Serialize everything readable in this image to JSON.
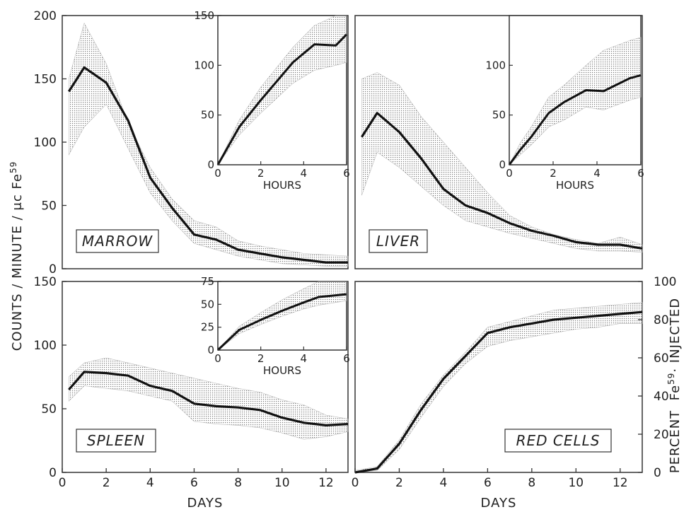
{
  "figure": {
    "y_label_left": "COUNTS / MINUTE / μc Fe",
    "y_label_left_sup": "59",
    "y_label_right_pre": "PERCENT  Fe",
    "y_label_right_sup": "59",
    "y_label_right_post": "· INJECTED"
  },
  "chart_data": [
    {
      "id": "marrow",
      "type": "line",
      "title": "MARROW",
      "xlabel": "",
      "ylabel": "",
      "xlim": [
        0,
        13
      ],
      "ylim": [
        0,
        200
      ],
      "xticks": [],
      "yticks": [
        0,
        50,
        100,
        150,
        200
      ],
      "x": [
        0.3,
        1,
        2,
        3,
        4,
        5,
        6,
        7,
        8,
        9,
        10,
        11,
        12,
        13
      ],
      "series": [
        {
          "values": [
            140,
            159,
            147,
            117,
            72,
            48,
            27,
            23,
            15,
            12,
            9,
            7,
            5,
            5
          ]
        }
      ],
      "band": {
        "upper": [
          150,
          194,
          162,
          115,
          80,
          55,
          38,
          33,
          22,
          18,
          15,
          12,
          11,
          10
        ],
        "lower": [
          90,
          112,
          130,
          95,
          60,
          38,
          20,
          15,
          10,
          7,
          4,
          3,
          2,
          2
        ]
      },
      "inset": {
        "xlabel": "HOURS",
        "xlim": [
          0,
          6
        ],
        "ylim": [
          0,
          150
        ],
        "xticks": [
          0,
          2,
          4,
          6
        ],
        "yticks": [
          0,
          50,
          100,
          150
        ],
        "x": [
          0,
          1,
          2,
          3.5,
          4.5,
          5.5,
          6
        ],
        "values": [
          0,
          38,
          65,
          103,
          121,
          120,
          131
        ],
        "upper": [
          0,
          45,
          78,
          118,
          140,
          150,
          150
        ],
        "lower": [
          0,
          30,
          52,
          82,
          95,
          100,
          103
        ]
      }
    },
    {
      "id": "liver",
      "type": "line",
      "title": "LIVER",
      "xlabel": "",
      "ylabel": "",
      "xlim": [
        0,
        13
      ],
      "ylim": [
        0,
        200
      ],
      "xticks": [],
      "yticks": [],
      "x": [
        0.3,
        1,
        2,
        3,
        4,
        5,
        6,
        7,
        8,
        9,
        10,
        11,
        12,
        13
      ],
      "series": [
        {
          "values": [
            104,
            123,
            108,
            87,
            63,
            50,
            44,
            36,
            30,
            26,
            21,
            19,
            19,
            16
          ]
        }
      ],
      "band": {
        "upper": [
          150,
          155,
          145,
          120,
          100,
          80,
          60,
          42,
          33,
          27,
          23,
          20,
          25,
          19
        ],
        "lower": [
          58,
          92,
          80,
          65,
          50,
          38,
          33,
          28,
          24,
          20,
          16,
          14,
          14,
          13
        ]
      },
      "inset": {
        "xlabel": "HOURS",
        "xlim": [
          0,
          6
        ],
        "ylim": [
          0,
          150
        ],
        "xticks": [
          0,
          2,
          4,
          6
        ],
        "yticks": [
          0,
          50,
          100
        ],
        "x": [
          0,
          0.5,
          1,
          1.8,
          2.5,
          3.5,
          4.3,
          5.5,
          6
        ],
        "values": [
          0,
          15,
          28,
          52,
          63,
          75,
          74,
          87,
          90
        ],
        "upper": [
          0,
          22,
          38,
          68,
          80,
          100,
          115,
          125,
          128
        ],
        "lower": [
          0,
          10,
          20,
          38,
          45,
          58,
          55,
          65,
          68
        ]
      }
    },
    {
      "id": "spleen",
      "type": "line",
      "title": "SPLEEN",
      "xlabel": "DAYS",
      "ylabel": "",
      "xlim": [
        0,
        13
      ],
      "ylim": [
        0,
        150
      ],
      "xticks": [
        0,
        2,
        4,
        6,
        8,
        10,
        12
      ],
      "yticks": [
        0,
        50,
        100,
        150
      ],
      "x": [
        0.3,
        1,
        2,
        3,
        4,
        5,
        6,
        7,
        8,
        9,
        10,
        11,
        12,
        13
      ],
      "series": [
        {
          "values": [
            65,
            79,
            78,
            76,
            68,
            64,
            54,
            52,
            51,
            49,
            43,
            39,
            37,
            38
          ]
        }
      ],
      "band": {
        "upper": [
          75,
          86,
          90,
          86,
          82,
          78,
          74,
          70,
          66,
          63,
          57,
          53,
          45,
          42
        ],
        "lower": [
          56,
          68,
          66,
          64,
          60,
          56,
          40,
          38,
          37,
          35,
          31,
          26,
          28,
          32
        ]
      },
      "inset": {
        "xlabel": "HOURS",
        "xlim": [
          0,
          6
        ],
        "ylim": [
          0,
          75
        ],
        "xticks": [
          0,
          2,
          4,
          6
        ],
        "yticks": [
          0,
          25,
          50,
          75
        ],
        "x": [
          0,
          1,
          2,
          3,
          4,
          4.7,
          6
        ],
        "values": [
          0,
          22,
          33,
          43,
          52,
          58,
          61
        ],
        "upper": [
          0,
          26,
          41,
          55,
          67,
          75,
          75
        ],
        "lower": [
          0,
          18,
          28,
          37,
          45,
          49,
          54
        ]
      }
    },
    {
      "id": "red_cells",
      "type": "line",
      "title": "RED CELLS",
      "xlabel": "DAYS",
      "ylabel": "",
      "xlim": [
        0,
        13
      ],
      "ylim": [
        0,
        100
      ],
      "xticks": [
        0,
        2,
        4,
        6,
        8,
        10,
        12
      ],
      "yticks": [
        0,
        20,
        40,
        60,
        80,
        100
      ],
      "yaxis_side": "right",
      "x": [
        0,
        1,
        2,
        3,
        4,
        5,
        6,
        7,
        8,
        9,
        10,
        11,
        12,
        13
      ],
      "series": [
        {
          "values": [
            0,
            2,
            15,
            33,
            49,
            61,
            73,
            76,
            78,
            80,
            81,
            82,
            83,
            84
          ]
        }
      ],
      "band": {
        "upper": [
          1,
          3,
          17,
          36,
          51,
          63,
          76,
          79,
          82,
          85,
          86,
          87,
          88,
          89
        ],
        "lower": [
          0,
          1,
          12,
          29,
          45,
          57,
          66,
          69,
          71,
          73,
          75,
          76,
          78,
          78
        ]
      }
    }
  ]
}
